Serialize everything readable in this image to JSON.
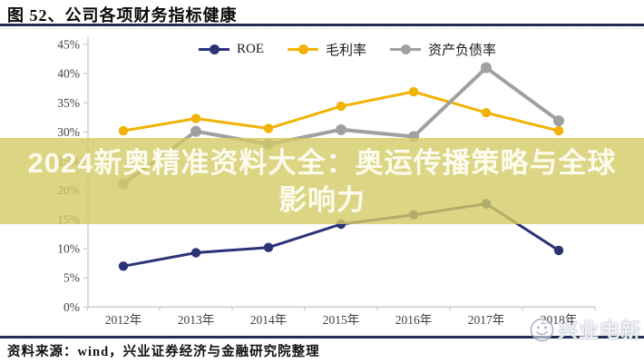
{
  "header": {
    "title": "图 52、公司各项财务指标健康"
  },
  "chart_data": {
    "type": "line",
    "title": "图 52、公司各项财务指标健康",
    "categories": [
      "2012年",
      "2013年",
      "2014年",
      "2015年",
      "2016年",
      "2017年",
      "2018年"
    ],
    "series": [
      {
        "name": "ROE",
        "color": "#2a3376",
        "values": [
          7.0,
          9.3,
          10.2,
          14.2,
          15.8,
          17.7,
          9.7
        ]
      },
      {
        "name": "毛利率",
        "color": "#f2b206",
        "values": [
          30.2,
          32.3,
          30.6,
          34.4,
          36.9,
          33.3,
          30.2
        ]
      },
      {
        "name": "资产负债率",
        "color": "#a0a0a0",
        "values": [
          21.1,
          30.1,
          27.9,
          30.4,
          29.2,
          41.0,
          31.9
        ]
      }
    ],
    "ylim": [
      0,
      45
    ],
    "ytick_step": 5,
    "ytick_suffix": "%",
    "grid": false,
    "legend_position": "top-center"
  },
  "banner": {
    "line1": "2024新奥精准资料大全：奥运传播策略与全球",
    "line2": "影响力",
    "bg_color": "rgba(211,202,101,0.8)",
    "text_color": "#fdfbee"
  },
  "footer": {
    "source": "资料来源：wind，兴业证券经济与金融研究院整理"
  },
  "watermark": {
    "text": "兴业电新",
    "icon": "smiley-logo-icon"
  },
  "colors": {
    "rule": "#232c54",
    "axis": "#c8c8c8",
    "tick_label": "#3f3f3f"
  }
}
